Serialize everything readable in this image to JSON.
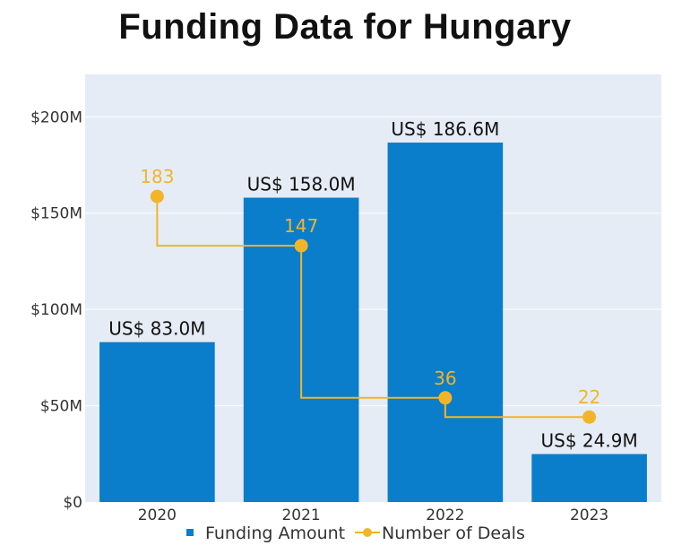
{
  "chart_data": {
    "type": "bar",
    "title": "Funding Data for Hungary",
    "categories": [
      "2020",
      "2021",
      "2022",
      "2023"
    ],
    "series": [
      {
        "name": "Funding Amount",
        "type": "bar",
        "values": [
          83.0,
          158.0,
          186.6,
          24.9
        ],
        "unit": "US$ M",
        "labels": [
          "US$ 83.0M",
          "US$ 158.0M",
          "US$ 186.6M",
          "US$ 24.9M"
        ],
        "color": "#0a7dcb"
      },
      {
        "name": "Number of Deals",
        "type": "line",
        "line_shape": "step-vh",
        "values": [
          183,
          147,
          36,
          22
        ],
        "labels": [
          "183",
          "147",
          "36",
          "22"
        ],
        "color": "#f2b52a",
        "axis": "secondary-hidden",
        "ylim": [
          -40,
          272
        ]
      }
    ],
    "yaxis": {
      "ylim": [
        0,
        222
      ],
      "ticks": [
        0,
        50,
        100,
        150,
        200
      ],
      "tick_labels": [
        "$0",
        "$50M",
        "$100M",
        "$150M",
        "$200M"
      ]
    },
    "xlabel": "",
    "ylabel": "",
    "grid": true,
    "legend": {
      "placement": "bottom",
      "entries": [
        "Funding Amount",
        "Number of Deals"
      ]
    },
    "background": "#e5ecf6"
  }
}
